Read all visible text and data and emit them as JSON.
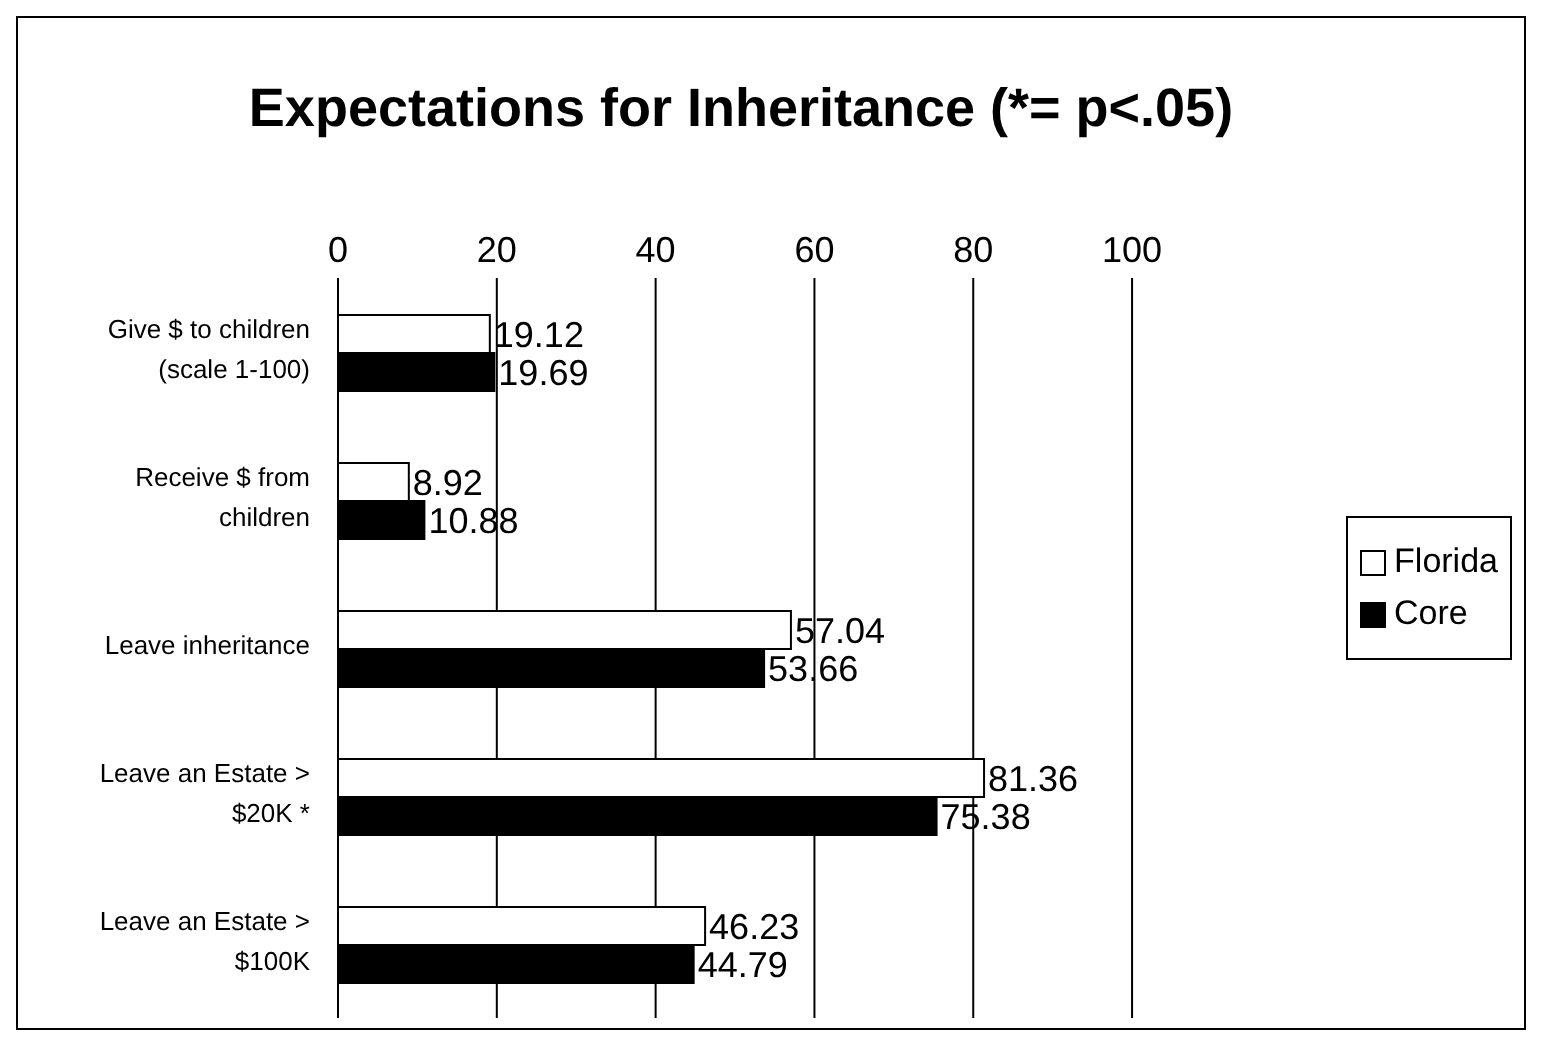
{
  "chart_data": {
    "type": "bar",
    "orientation": "horizontal",
    "title": "Expectations for Inheritance (*= p<.05)",
    "categories": [
      "Give $ to children (scale 1-100)",
      "Receive $ from children",
      "Leave inheritance",
      "Leave an Estate > $20K *",
      "Leave an Estate > $100K"
    ],
    "series": [
      {
        "name": "Florida",
        "color": "#ffffff",
        "values": [
          19.12,
          8.92,
          57.04,
          81.36,
          46.23
        ]
      },
      {
        "name": "Core",
        "color": "#000000",
        "values": [
          19.69,
          10.88,
          53.66,
          75.38,
          44.79
        ]
      }
    ],
    "xlim": [
      0,
      100
    ],
    "xticks": [
      0,
      20,
      40,
      60,
      80,
      100
    ],
    "grid": "x",
    "legend": "right",
    "data_labels": true
  }
}
